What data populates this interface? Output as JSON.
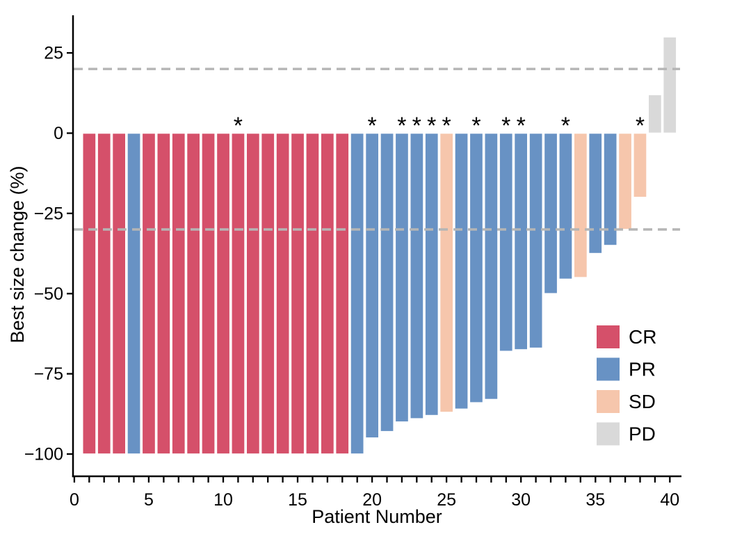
{
  "chart_data": {
    "type": "bar",
    "subtype": "waterfall",
    "title": "",
    "xlabel": "Patient Number",
    "ylabel": "Best size change (%)",
    "xlim": [
      0,
      40
    ],
    "ylim": [
      -100,
      32
    ],
    "grid": false,
    "legend_position": "right-lower",
    "x_ticks": [
      0,
      5,
      10,
      15,
      20,
      25,
      30,
      35,
      40
    ],
    "y_ticks": [
      25,
      0,
      -25,
      -50,
      -75,
      -100
    ],
    "y_tick_labels": [
      "25",
      "0",
      "−25",
      "−50",
      "−75",
      "−100"
    ],
    "reference_lines": [
      20,
      -30
    ],
    "asterisk_patients": [
      11,
      20,
      22,
      23,
      24,
      25,
      27,
      29,
      30,
      33,
      38
    ],
    "legend": [
      {
        "label": "CR",
        "color": "#d5506a"
      },
      {
        "label": "PR",
        "color": "#6892c4"
      },
      {
        "label": "SD",
        "color": "#f6c6ac"
      },
      {
        "label": "PD",
        "color": "#d9d9d9"
      }
    ],
    "colors": {
      "reference_line": "#b5b5b5",
      "axis": "#000000",
      "bar_outline": "#ffffff"
    },
    "patients": [
      {
        "patient": 1,
        "value": -100,
        "response": "CR"
      },
      {
        "patient": 2,
        "value": -100,
        "response": "CR"
      },
      {
        "patient": 3,
        "value": -100,
        "response": "CR"
      },
      {
        "patient": 4,
        "value": -100,
        "response": "PR"
      },
      {
        "patient": 5,
        "value": -100,
        "response": "CR"
      },
      {
        "patient": 6,
        "value": -100,
        "response": "CR"
      },
      {
        "patient": 7,
        "value": -100,
        "response": "CR"
      },
      {
        "patient": 8,
        "value": -100,
        "response": "CR"
      },
      {
        "patient": 9,
        "value": -100,
        "response": "CR"
      },
      {
        "patient": 10,
        "value": -100,
        "response": "CR"
      },
      {
        "patient": 11,
        "value": -100,
        "response": "CR"
      },
      {
        "patient": 12,
        "value": -100,
        "response": "CR"
      },
      {
        "patient": 13,
        "value": -100,
        "response": "CR"
      },
      {
        "patient": 14,
        "value": -100,
        "response": "CR"
      },
      {
        "patient": 15,
        "value": -100,
        "response": "CR"
      },
      {
        "patient": 16,
        "value": -100,
        "response": "CR"
      },
      {
        "patient": 17,
        "value": -100,
        "response": "CR"
      },
      {
        "patient": 18,
        "value": -100,
        "response": "CR"
      },
      {
        "patient": 19,
        "value": -100,
        "response": "PR"
      },
      {
        "patient": 20,
        "value": -95,
        "response": "PR"
      },
      {
        "patient": 21,
        "value": -93,
        "response": "PR"
      },
      {
        "patient": 22,
        "value": -90,
        "response": "PR"
      },
      {
        "patient": 23,
        "value": -89,
        "response": "PR"
      },
      {
        "patient": 24,
        "value": -88,
        "response": "PR"
      },
      {
        "patient": 25,
        "value": -87,
        "response": "SD"
      },
      {
        "patient": 26,
        "value": -86,
        "response": "PR"
      },
      {
        "patient": 27,
        "value": -84,
        "response": "PR"
      },
      {
        "patient": 28,
        "value": -83,
        "response": "PR"
      },
      {
        "patient": 29,
        "value": -68,
        "response": "PR"
      },
      {
        "patient": 30,
        "value": -67.5,
        "response": "PR"
      },
      {
        "patient": 31,
        "value": -67,
        "response": "PR"
      },
      {
        "patient": 32,
        "value": -50,
        "response": "PR"
      },
      {
        "patient": 33,
        "value": -45.5,
        "response": "PR"
      },
      {
        "patient": 34,
        "value": -45,
        "response": "SD"
      },
      {
        "patient": 35,
        "value": -37.5,
        "response": "PR"
      },
      {
        "patient": 36,
        "value": -35,
        "response": "PR"
      },
      {
        "patient": 37,
        "value": -30,
        "response": "SD"
      },
      {
        "patient": 38,
        "value": -20,
        "response": "SD"
      },
      {
        "patient": 39,
        "value": 12,
        "response": "PD"
      },
      {
        "patient": 40,
        "value": 30,
        "response": "PD"
      }
    ]
  }
}
